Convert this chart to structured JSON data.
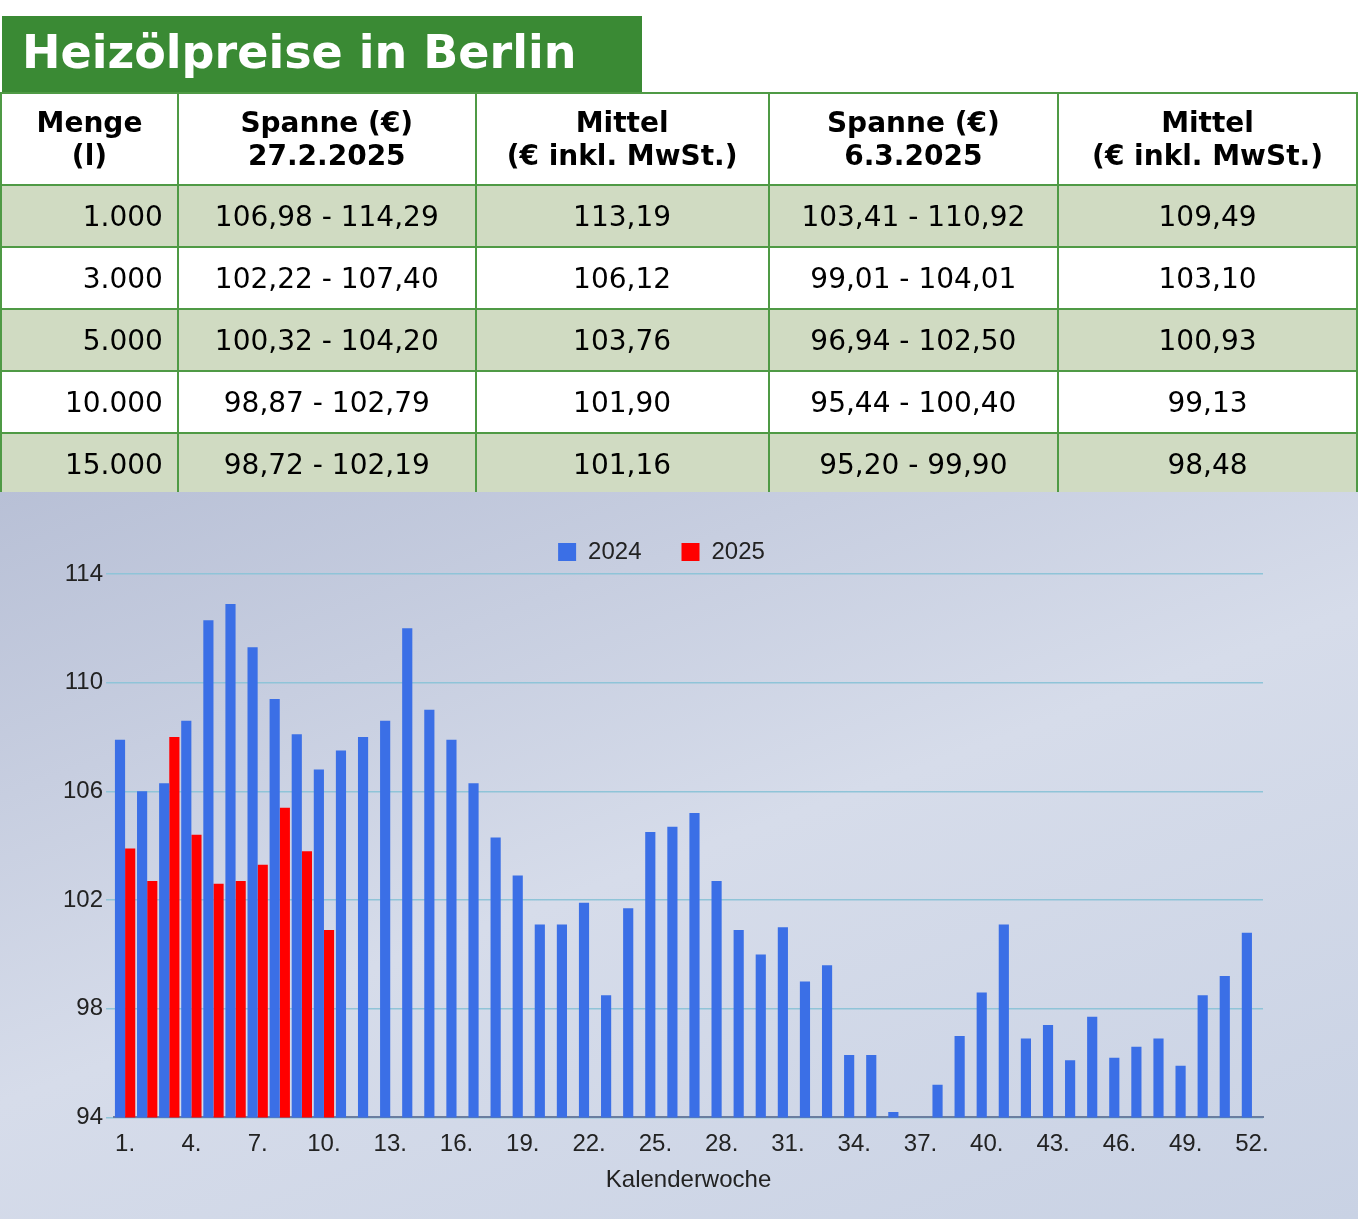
{
  "chart_data": [
    {
      "type": "other",
      "title": "Heizölpreise in Berlin",
      "categories": [
        "Menge\n(l)",
        "Spanne (€)\n27.2.2025",
        "Mittel\n(€ inkl. MwSt.)",
        "Spanne (€)\n6.3.2025",
        "Mittel\n(€ inkl. MwSt.)"
      ],
      "cell_labels": [
        [
          "1.000",
          "106,98 - 114,29",
          "113,19",
          "103,41 - 110,92",
          "109,49"
        ],
        [
          "3.000",
          "102,22 - 107,40",
          "106,12",
          "99,01 - 104,01",
          "103,10"
        ],
        [
          "5.000",
          "100,32 - 104,20",
          "103,76",
          "96,94 - 102,50",
          "100,93"
        ],
        [
          "10.000",
          "98,87 - 102,79",
          "101,90",
          "95,44 - 100,40",
          "99,13"
        ],
        [
          "15.000",
          "98,72 - 102,19",
          "101,16",
          "95,20 - 99,90",
          "98,48"
        ]
      ]
    },
    {
      "type": "bar",
      "xlabel": "Kalenderwoche",
      "categories": [
        "1.",
        null,
        null,
        "4.",
        null,
        null,
        "7.",
        null,
        null,
        "10.",
        null,
        null,
        "13.",
        null,
        null,
        "16.",
        null,
        null,
        "19.",
        null,
        null,
        "22.",
        null,
        null,
        "25.",
        null,
        null,
        "28.",
        null,
        null,
        "31.",
        null,
        null,
        "34.",
        null,
        null,
        "37.",
        null,
        null,
        "40.",
        null,
        null,
        "43.",
        null,
        null,
        "46.",
        null,
        null,
        "49.",
        null,
        null,
        "52."
      ],
      "series": [
        {
          "name": "2024",
          "color": "#3b6fe6",
          "values": [
            107.9,
            106.0,
            106.3,
            108.6,
            112.3,
            112.9,
            111.3,
            109.4,
            108.1,
            106.8,
            107.5,
            108.0,
            108.6,
            112.0,
            109.0,
            107.9,
            106.3,
            104.3,
            102.9,
            101.1,
            101.1,
            101.9,
            98.5,
            101.7,
            104.5,
            104.7,
            105.2,
            102.7,
            100.9,
            100.0,
            101.0,
            99.0,
            99.6,
            96.3,
            96.3,
            94.2,
            null,
            95.2,
            97.0,
            98.6,
            101.1,
            96.9,
            97.4,
            96.1,
            97.7,
            96.2,
            96.6,
            96.9,
            95.9,
            98.5,
            99.2,
            100.8
          ]
        },
        {
          "name": "2025",
          "color": "#ff0000",
          "values": [
            103.9,
            102.7,
            108.0,
            104.4,
            102.6,
            102.7,
            103.3,
            105.4,
            103.8,
            100.9,
            null,
            null,
            null,
            null,
            null,
            null,
            null,
            null,
            null,
            null,
            null,
            null,
            null,
            null,
            null,
            null,
            null,
            null,
            null,
            null,
            null,
            null,
            null,
            null,
            null,
            null,
            null,
            null,
            null,
            null,
            null,
            null,
            null,
            null,
            null,
            null,
            null,
            null,
            null,
            null,
            null,
            null
          ]
        }
      ],
      "ylim": [
        94,
        114
      ],
      "yticks": [
        94,
        98,
        102,
        106,
        110,
        114
      ],
      "grid": "y",
      "legend": "top"
    }
  ]
}
